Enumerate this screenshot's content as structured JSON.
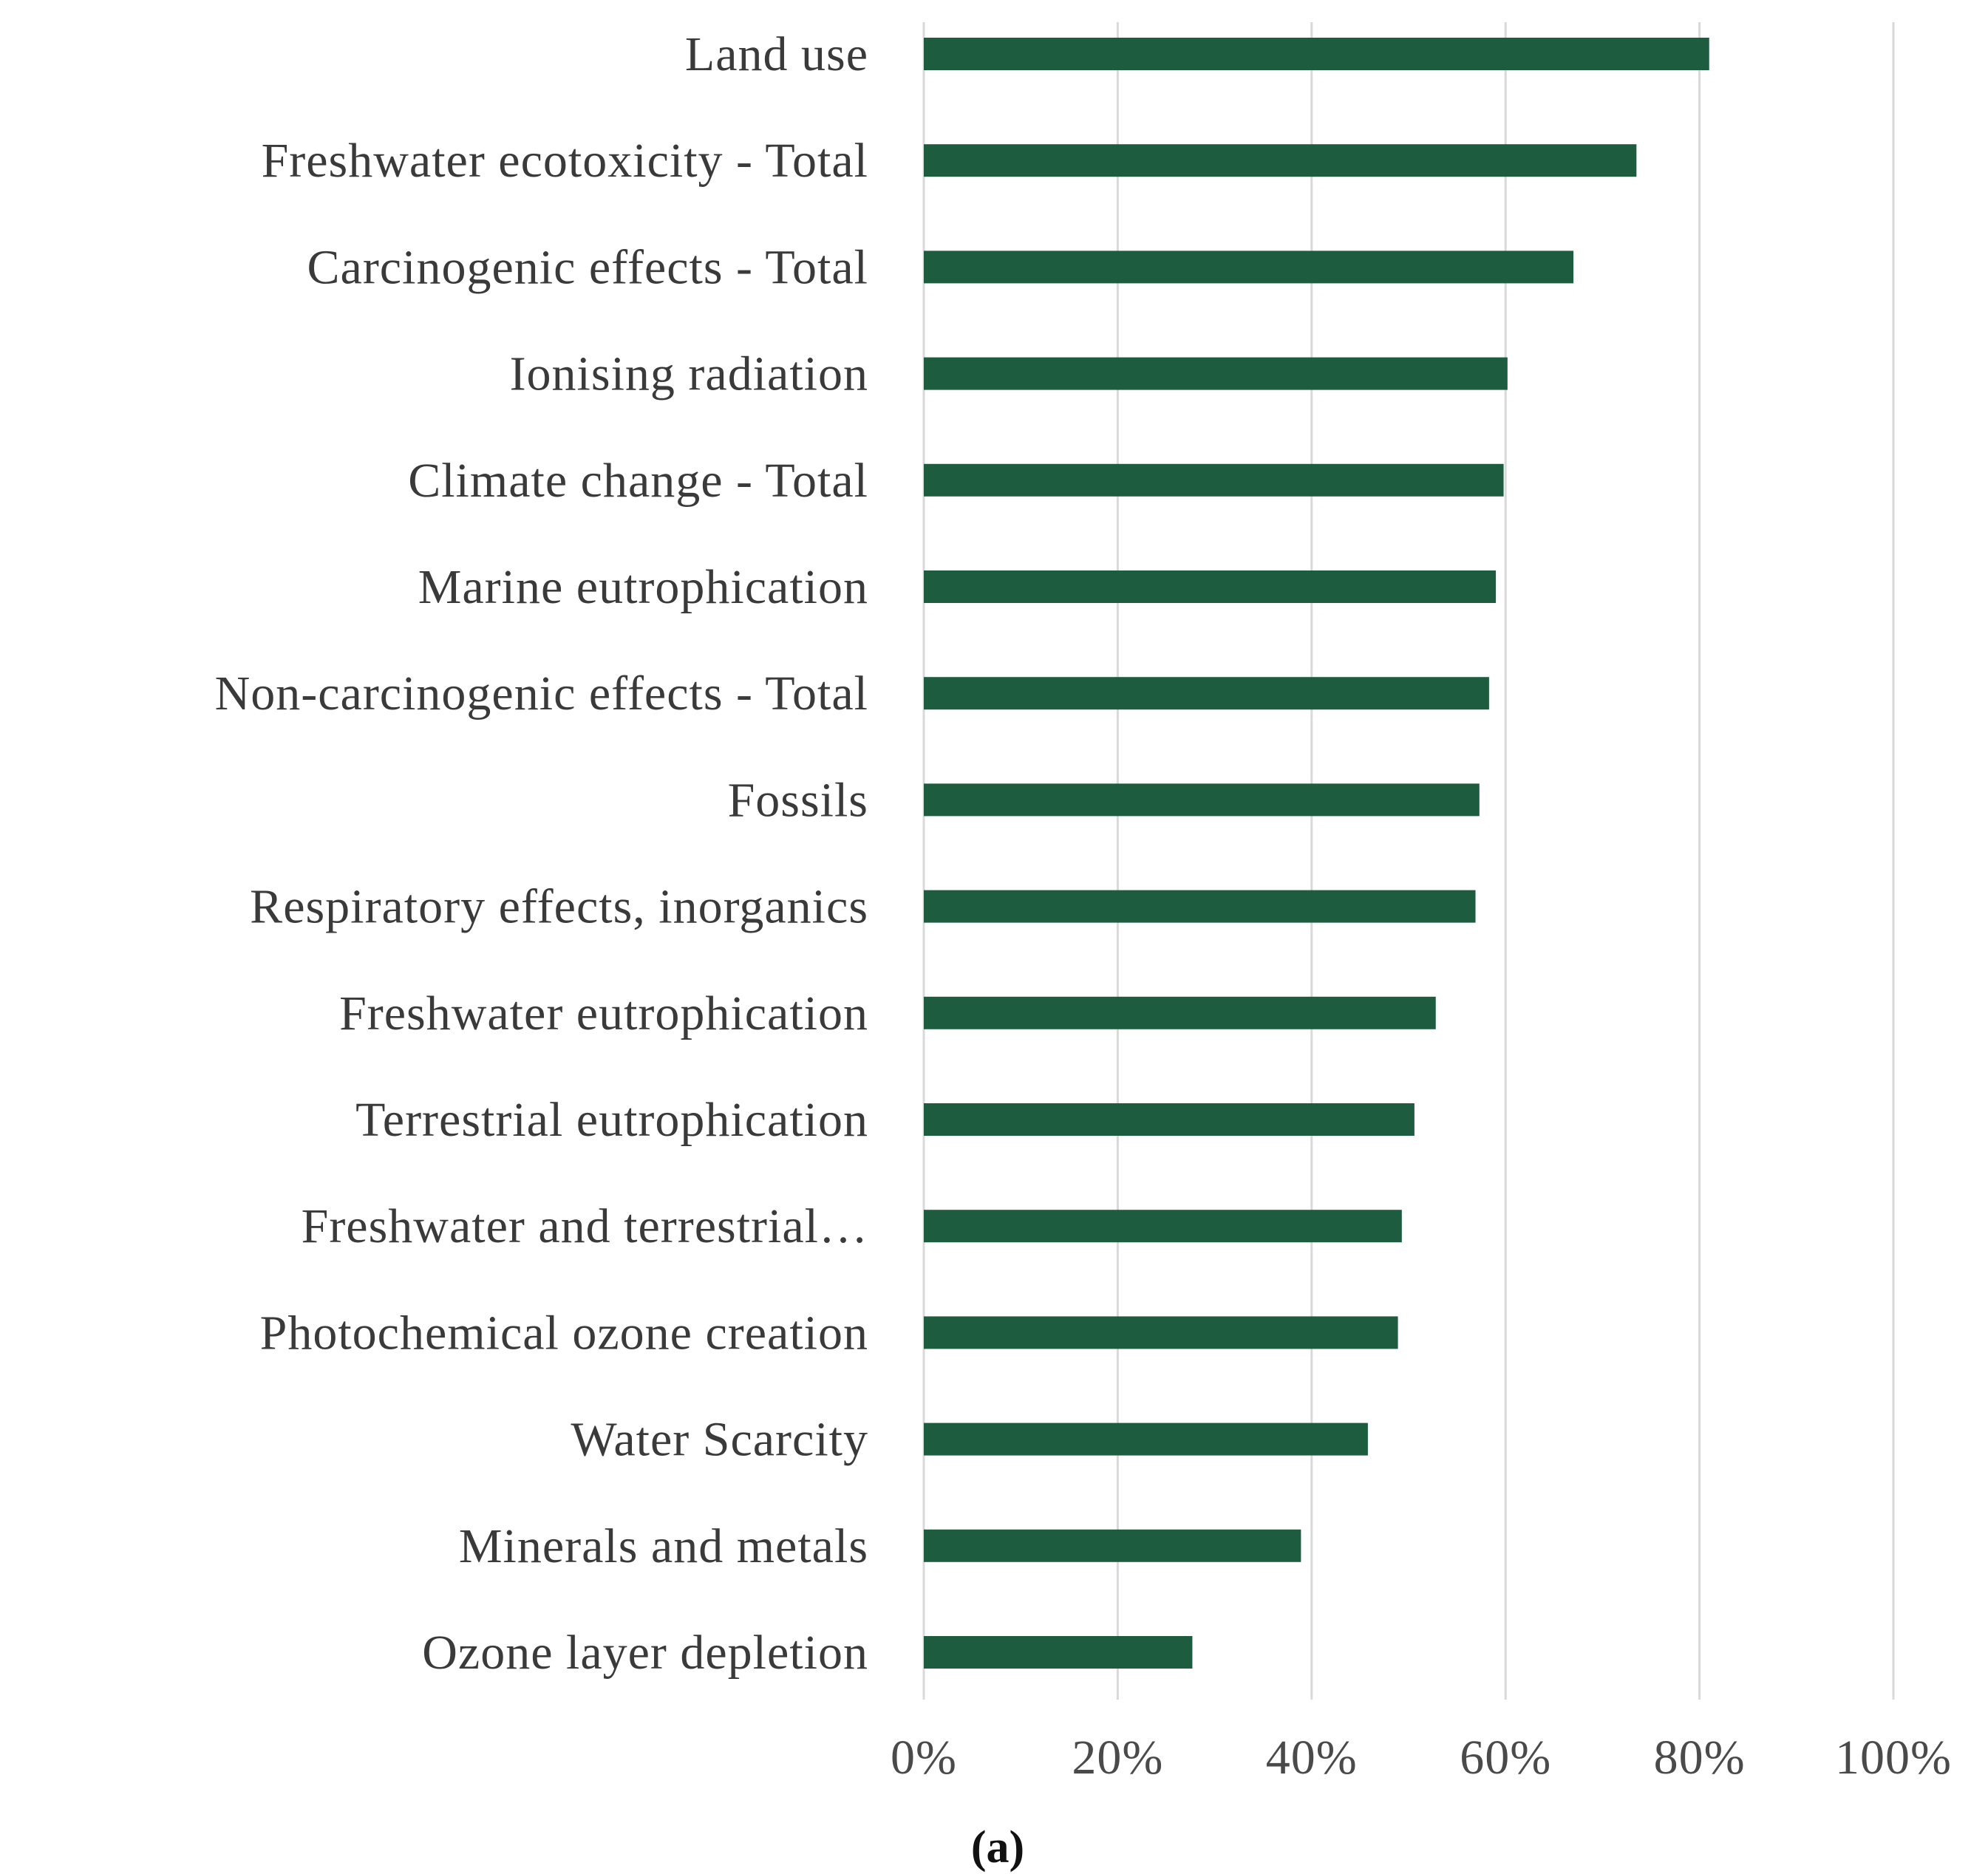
{
  "chart_data": {
    "type": "bar",
    "orientation": "horizontal",
    "categories": [
      "Land use",
      "Freshwater ecotoxicity - Total",
      "Carcinogenic effects - Total",
      "Ionising radiation",
      "Climate change - Total",
      "Marine eutrophication",
      "Non-carcinogenic effects - Total",
      "Fossils",
      "Respiratory effects, inorganics",
      "Freshwater eutrophication",
      "Terrestrial eutrophication",
      "Freshwater and terrestrial…",
      "Photochemical ozone creation",
      "Water Scarcity",
      "Minerals and metals",
      "Ozone layer depletion"
    ],
    "values": [
      81,
      73.5,
      67,
      60.2,
      59.8,
      59,
      58.3,
      57.3,
      56.9,
      52.8,
      50.6,
      49.3,
      48.9,
      45.8,
      38.9,
      27.7
    ],
    "xlim": [
      0,
      100
    ],
    "xticks": [
      "0%",
      "20%",
      "40%",
      "60%",
      "80%",
      "100%"
    ],
    "xtick_values": [
      0,
      20,
      40,
      60,
      80,
      100
    ],
    "grid": "vertical",
    "bar_color": "#1e5c40",
    "grid_color": "#d9d9d9",
    "title": "",
    "xlabel": "",
    "ylabel": "",
    "panel_label": "(a)"
  }
}
